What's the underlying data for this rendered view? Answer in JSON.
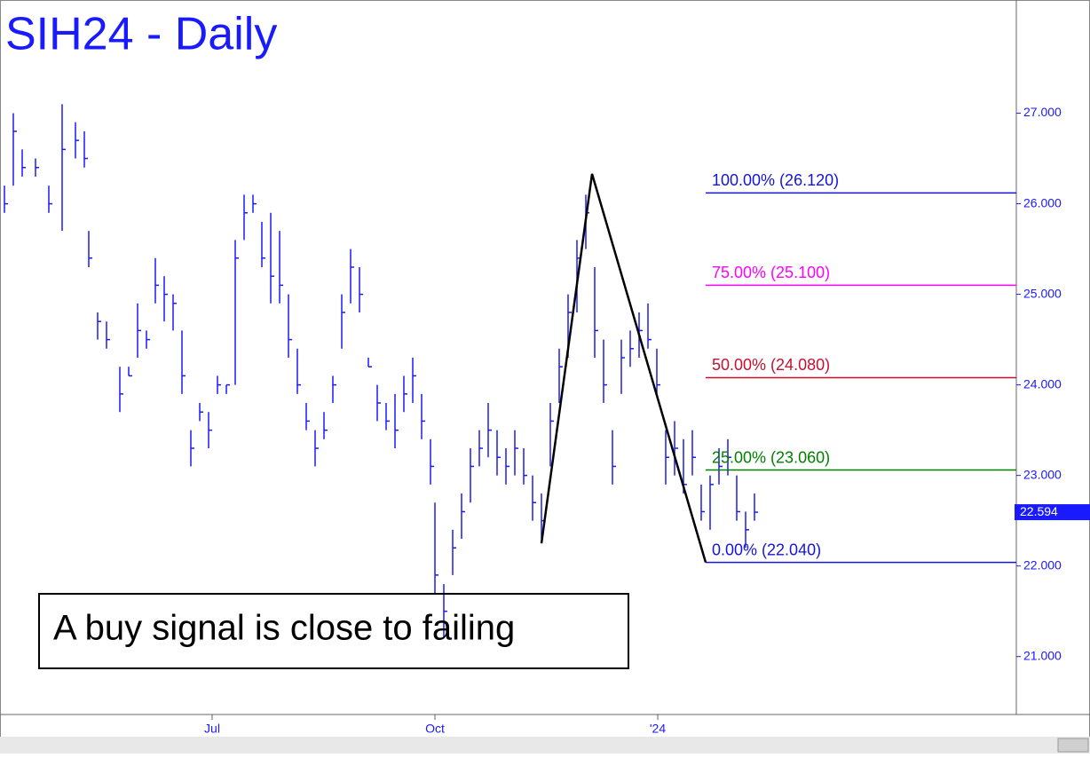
{
  "chart_data": {
    "type": "ohlc",
    "title": "SIH24 - Daily",
    "annotation": "A buy signal is close to failing",
    "color": "#1a1aff",
    "xlim": [
      0,
      286.25
    ],
    "xticks": [
      {
        "value": 59.75,
        "label": "Jul"
      },
      {
        "value": 122.5,
        "label": "Oct"
      },
      {
        "value": 185.25,
        "label": "'24"
      }
    ],
    "ylim": [
      20.36,
      28.25
    ],
    "yticks": [
      {
        "value": 21,
        "label": "21.000"
      },
      {
        "value": 22,
        "label": "22.000"
      },
      {
        "value": 23,
        "label": "23.000"
      },
      {
        "value": 24,
        "label": "24.000"
      },
      {
        "value": 25,
        "label": "25.000"
      },
      {
        "value": 26,
        "label": "26.000"
      },
      {
        "value": 27,
        "label": "27.000"
      }
    ],
    "x": [
      1.25,
      3.75,
      6.25,
      10,
      13.75,
      17.5,
      21.25,
      23.75,
      25,
      27.5,
      30,
      33.75,
      36.25,
      38.75,
      41.25,
      43.75,
      46.25,
      48.75,
      51.25,
      53.75,
      56.25,
      58.75,
      61.25,
      63.75,
      66.25,
      68.75,
      71.25,
      73.75,
      76.25,
      78.75,
      81.25,
      83.75,
      86.25,
      88.75,
      91.25,
      93.75,
      96.25,
      98.75,
      101.25,
      103.75,
      106.25,
      108.75,
      111.25,
      113.75,
      116.25,
      118.75,
      121.25,
      122.5,
      125,
      127.5,
      130,
      132.5,
      135,
      137.5,
      140,
      142.5,
      145,
      147.5,
      150,
      152.5,
      155,
      157.5,
      160,
      162.5,
      165,
      167.5,
      170,
      172.5,
      175,
      177.5,
      180,
      182.5,
      185,
      187.5,
      190,
      192.5,
      195,
      197.5,
      200,
      202.5,
      205,
      207.5,
      210,
      212.5
    ],
    "high": [
      26.2,
      27.0,
      26.6,
      26.5,
      26.2,
      27.1,
      26.9,
      26.8,
      25.7,
      24.8,
      24.7,
      24.2,
      24.2,
      24.9,
      24.6,
      25.4,
      25.2,
      25.0,
      24.6,
      23.5,
      23.8,
      23.7,
      24.1,
      24.0,
      25.6,
      26.1,
      26.1,
      25.8,
      25.9,
      25.7,
      25.0,
      24.4,
      23.8,
      23.5,
      23.7,
      24.1,
      25.0,
      25.5,
      25.3,
      24.3,
      24.0,
      23.8,
      23.9,
      24.1,
      24.3,
      23.9,
      23.4,
      22.7,
      21.8,
      22.4,
      22.8,
      23.3,
      23.5,
      23.8,
      23.5,
      23.3,
      23.5,
      23.3,
      23.0,
      22.8,
      23.8,
      24.4,
      25.0,
      25.6,
      26.1,
      25.3,
      24.5,
      23.5,
      24.5,
      24.6,
      24.8,
      24.9,
      24.4,
      23.5,
      23.6,
      23.4,
      23.5,
      22.9,
      23.0,
      23.3,
      23.4,
      23.0,
      22.6,
      22.8
    ],
    "low": [
      25.9,
      26.2,
      26.3,
      26.3,
      25.9,
      25.7,
      26.5,
      26.4,
      25.3,
      24.5,
      24.4,
      23.7,
      24.1,
      24.3,
      24.4,
      24.9,
      24.7,
      24.6,
      23.9,
      23.1,
      23.6,
      23.3,
      23.9,
      23.9,
      24.0,
      25.6,
      25.9,
      25.3,
      24.9,
      24.9,
      24.3,
      23.9,
      23.5,
      23.1,
      23.4,
      23.8,
      24.4,
      24.9,
      24.8,
      24.2,
      23.6,
      23.5,
      23.3,
      23.7,
      23.8,
      23.4,
      22.9,
      21.7,
      21.2,
      21.9,
      22.3,
      22.7,
      23.1,
      23.2,
      23.0,
      22.9,
      23.0,
      22.9,
      22.5,
      22.3,
      23.1,
      23.8,
      24.3,
      24.8,
      25.5,
      24.3,
      23.8,
      22.9,
      23.9,
      24.2,
      24.3,
      24.4,
      23.9,
      22.9,
      23.0,
      22.8,
      23.0,
      22.5,
      22.4,
      22.9,
      23.0,
      22.5,
      22.2,
      22.5
    ],
    "close": [
      26.0,
      26.8,
      26.4,
      26.4,
      26.0,
      26.6,
      26.7,
      26.5,
      25.4,
      24.7,
      24.5,
      23.9,
      24.1,
      24.6,
      24.5,
      25.1,
      25.0,
      24.9,
      24.1,
      23.3,
      23.7,
      23.5,
      24.0,
      24.0,
      25.4,
      25.9,
      26.0,
      25.4,
      25.2,
      25.1,
      24.5,
      24.0,
      23.6,
      23.3,
      23.5,
      24.0,
      24.8,
      25.3,
      25.0,
      24.2,
      23.8,
      23.6,
      23.5,
      23.9,
      24.1,
      23.6,
      23.1,
      21.9,
      21.5,
      22.2,
      22.6,
      23.1,
      23.3,
      23.5,
      23.2,
      23.1,
      23.3,
      23.0,
      22.7,
      22.5,
      23.6,
      24.2,
      24.8,
      25.4,
      25.9,
      24.6,
      24.0,
      23.1,
      24.3,
      24.4,
      24.6,
      24.5,
      24.0,
      23.2,
      23.3,
      22.9,
      23.2,
      22.6,
      22.9,
      23.1,
      23.2,
      22.6,
      22.4,
      22.594
    ],
    "last_price": 22.594,
    "pattern": {
      "color": "#000000",
      "x": [
        152.5,
        166.75,
        198.75
      ],
      "values": [
        22.25,
        26.33,
        22.04
      ]
    },
    "levels": [
      {
        "label": "100.00% (26.120)",
        "value": 26.12,
        "color": "#1414dc"
      },
      {
        "label": "75.00% (25.100)",
        "value": 25.1,
        "color": "#ff00ff"
      },
      {
        "label": "50.00% (24.080)",
        "value": 24.08,
        "color": "#c8102e"
      },
      {
        "label": "25.00% (23.060)",
        "value": 23.06,
        "color": "#008000"
      },
      {
        "label": "0.00% (22.040)",
        "value": 22.04,
        "color": "#1414dc"
      }
    ],
    "levels_start": 198.75
  }
}
